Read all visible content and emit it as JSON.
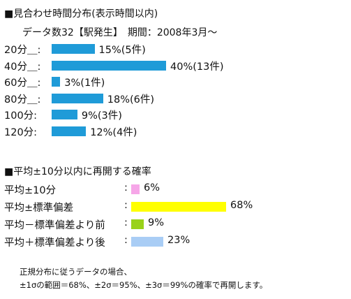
{
  "chart_data": [
    {
      "type": "bar",
      "orientation": "horizontal",
      "title": "■見合わせ時間分布(表示時間以内)",
      "subtitle": "データ数32【駅発生】　期間：2008年3月～",
      "categories": [
        "20分＿:",
        "40分＿:",
        "60分＿:",
        "80分＿:",
        "100分:",
        "120分:"
      ],
      "values": [
        15,
        40,
        3,
        18,
        9,
        12
      ],
      "counts": [
        5,
        13,
        1,
        6,
        3,
        4
      ],
      "value_labels": [
        "15%(5件)",
        "40%(13件)",
        "3%(1件)",
        "18%(6件)",
        "9%(3件)",
        "12%(4件)"
      ],
      "bar_color": "#1f9bd8",
      "unit": "%"
    },
    {
      "type": "bar",
      "orientation": "horizontal",
      "title": "■平均±10分以内に再開する確率",
      "categories": [
        "平均±10分",
        "平均±標準偏差",
        "平均－標準偏差より前",
        "平均＋標準偏差より後"
      ],
      "values": [
        6,
        68,
        9,
        23
      ],
      "value_labels": [
        "6%",
        "68%",
        "9%",
        "23%"
      ],
      "colors": [
        "#f6a6e8",
        "#ffff00",
        "#99d21a",
        "#a9cdf5"
      ],
      "separator": ":",
      "unit": "%"
    }
  ],
  "notes": [
    "正規分布に従うデータの場合、",
    "±1σの範囲＝68%、±2σ＝95%、±3σ＝99%の確率で再開します。"
  ]
}
